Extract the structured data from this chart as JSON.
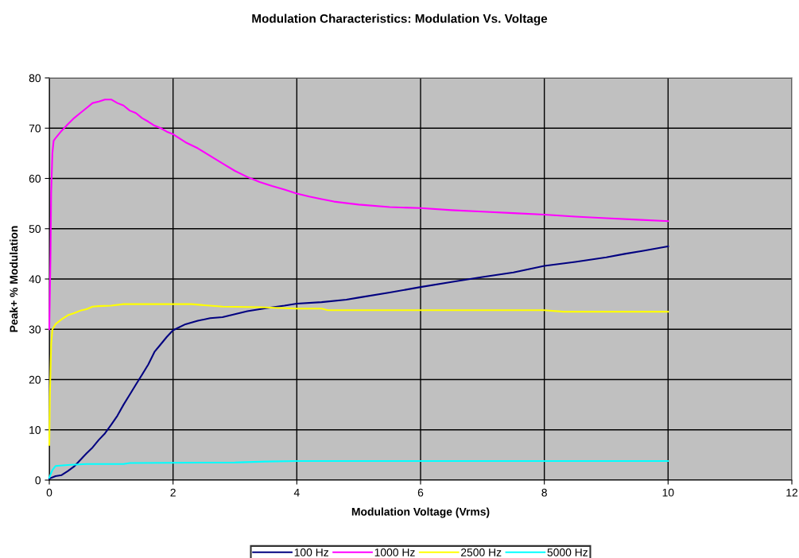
{
  "chart_data": {
    "type": "line",
    "title": "Modulation Characteristics: Modulation Vs. Voltage",
    "xlabel": "Modulation Voltage (Vrms)",
    "ylabel": "Peak+ % Modulation",
    "xlim": [
      0,
      12
    ],
    "xticks": [
      0,
      2,
      4,
      6,
      8,
      10,
      12
    ],
    "ylim": [
      0,
      80
    ],
    "yticks": [
      0,
      10,
      20,
      30,
      40,
      50,
      60,
      70,
      80
    ],
    "grid": true,
    "legend": "bottom",
    "marker": "none",
    "line_style": "solid",
    "series": [
      {
        "name": "100 Hz",
        "color": "#000080",
        "x": [
          0,
          0.1,
          0.2,
          0.3,
          0.4,
          0.5,
          0.6,
          0.7,
          0.8,
          0.9,
          1.0,
          1.1,
          1.2,
          1.3,
          1.4,
          1.5,
          1.6,
          1.7,
          1.8,
          1.9,
          2.0,
          2.2,
          2.4,
          2.6,
          2.8,
          3.0,
          3.2,
          3.5,
          3.8,
          4.0,
          4.4,
          4.8,
          5.0,
          5.5,
          6.0,
          6.5,
          7.0,
          7.5,
          8.0,
          8.5,
          9.0,
          9.3,
          9.6,
          10
        ],
        "values": [
          0.3,
          0.8,
          1,
          1.8,
          2.7,
          4,
          5.3,
          6.5,
          8,
          9.3,
          11,
          12.8,
          15,
          17,
          19,
          21,
          23,
          25.5,
          27,
          28.5,
          29.8,
          31,
          31.7,
          32.2,
          32.4,
          33,
          33.6,
          34.2,
          34.7,
          35.1,
          35.4,
          35.9,
          36.3,
          37.3,
          38.4,
          39.4,
          40.4,
          41.3,
          42.6,
          43.4,
          44.3,
          45,
          45.6,
          46.5
        ]
      },
      {
        "name": "1000 Hz",
        "color": "#ff00ff",
        "x": [
          0,
          0.02,
          0.03,
          0.05,
          0.07,
          0.1,
          0.2,
          0.3,
          0.4,
          0.5,
          0.6,
          0.7,
          0.8,
          0.9,
          1.0,
          1.1,
          1.2,
          1.3,
          1.4,
          1.5,
          1.6,
          1.7,
          1.8,
          1.9,
          2.0,
          2.1,
          2.2,
          2.4,
          2.6,
          2.8,
          3.0,
          3.2,
          3.4,
          3.6,
          3.8,
          4.0,
          4.2,
          4.4,
          4.6,
          5.0,
          5.5,
          6.0,
          6.5,
          7.0,
          7.5,
          8.0,
          8.5,
          9.0,
          9.5,
          10
        ],
        "values": [
          30,
          45,
          57,
          65,
          67.5,
          68,
          69.5,
          70.8,
          72,
          73,
          74,
          75,
          75.3,
          75.7,
          75.7,
          75,
          74.5,
          73.5,
          73,
          72,
          71.3,
          70.5,
          70,
          69.3,
          68.8,
          68,
          67.2,
          66,
          64.5,
          63,
          61.5,
          60.3,
          59.3,
          58.5,
          57.8,
          57,
          56.4,
          55.9,
          55.4,
          54.8,
          54.3,
          54.1,
          53.7,
          53.4,
          53.1,
          52.8,
          52.4,
          52.1,
          51.8,
          51.5
        ]
      },
      {
        "name": "2500 Hz",
        "color": "#ffff00",
        "x": [
          0,
          0.01,
          0.03,
          0.05,
          0.1,
          0.2,
          0.3,
          0.4,
          0.5,
          0.6,
          0.7,
          0.8,
          1.0,
          1.2,
          2.0,
          2.3,
          2.8,
          3.4,
          4.0,
          4.4,
          4.5,
          6,
          8,
          8.3,
          10
        ],
        "values": [
          7,
          17,
          27,
          30,
          31,
          32,
          32.8,
          33.2,
          33.7,
          34,
          34.5,
          34.6,
          34.7,
          35,
          35,
          35,
          34.5,
          34.4,
          34.1,
          34.1,
          33.8,
          33.8,
          33.8,
          33.5,
          33.5
        ]
      },
      {
        "name": "5000 Hz",
        "color": "#00ffff",
        "x": [
          0,
          0.05,
          0.1,
          0.3,
          0.6,
          1.2,
          1.3,
          3.0,
          3.5,
          4,
          10
        ],
        "values": [
          0.5,
          2,
          2.8,
          3,
          3.2,
          3.2,
          3.4,
          3.5,
          3.7,
          3.8,
          3.8
        ]
      }
    ]
  }
}
